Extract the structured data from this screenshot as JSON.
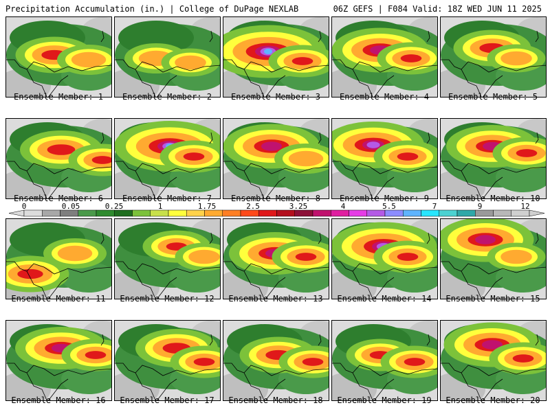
{
  "header": {
    "left": "Precipitation Accumulation (in.) | College of DuPage NEXLAB",
    "right": "06Z GEFS | F084 Valid: 18Z WED JUN 11 2025"
  },
  "colorbar": {
    "ticks": [
      "0",
      "0.05",
      "0.25",
      "1",
      "1.75",
      "2.5",
      "3.25",
      "4",
      "5.5",
      "7",
      "9",
      "12"
    ],
    "colors": [
      "#dcdcdc",
      "#a8a8a8",
      "#7f7f7f",
      "#4a9a4a",
      "#2e8b2e",
      "#1f6e1f",
      "#7cc23a",
      "#c8e04a",
      "#ffff3c",
      "#ffd24a",
      "#ffaa30",
      "#ff7f24",
      "#ff4a1a",
      "#e0181a",
      "#b40f1e",
      "#8c1038",
      "#c0126e",
      "#e01ea0",
      "#e63ce6",
      "#b45ae6",
      "#8c8cff",
      "#5fb4ff",
      "#28e6ff",
      "#4cd2d2",
      "#30a8a8",
      "#9a9a9a",
      "#b8b8b8",
      "#d0d0d0"
    ]
  },
  "panels": [
    {
      "label": "Ensemble Member: 1"
    },
    {
      "label": "Ensemble Member: 2"
    },
    {
      "label": "Ensemble Member: 3"
    },
    {
      "label": "Ensemble Member: 4"
    },
    {
      "label": "Ensemble Member: 5"
    },
    {
      "label": "Ensemble Member: 6"
    },
    {
      "label": "Ensemble Member: 7"
    },
    {
      "label": "Ensemble Member: 8"
    },
    {
      "label": "Ensemble Member: 9"
    },
    {
      "label": "Ensemble Member: 10"
    },
    {
      "label": "Ensemble Member: 11"
    },
    {
      "label": "Ensemble Member: 12"
    },
    {
      "label": "Ensemble Member: 13"
    },
    {
      "label": "Ensemble Member: 14"
    },
    {
      "label": "Ensemble Member: 15"
    },
    {
      "label": "Ensemble Member: 16"
    },
    {
      "label": "Ensemble Member: 17"
    },
    {
      "label": "Ensemble Member: 18"
    },
    {
      "label": "Ensemble Member: 19"
    },
    {
      "label": "Ensemble Member: 20"
    }
  ]
}
